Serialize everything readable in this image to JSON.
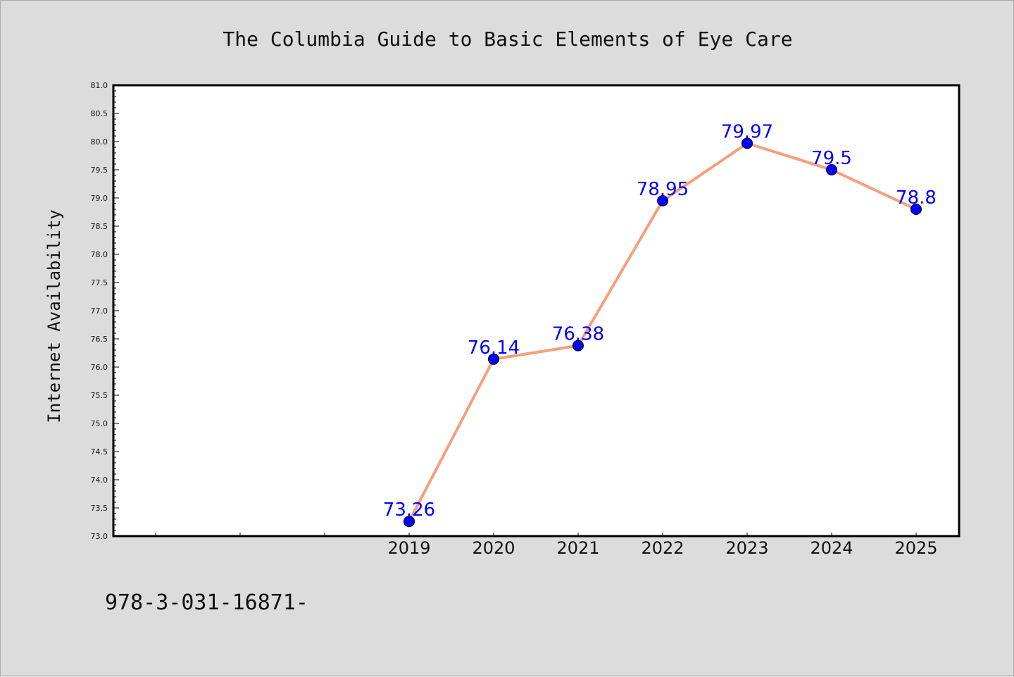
{
  "footer_note": "978-3-031-16871-",
  "colors": {
    "background": "#dcdcdc",
    "plot_background": "#ffffff",
    "line": "#f4a07d",
    "marker": "#0000ff",
    "data_label": "#0000ff"
  },
  "chart_data": {
    "type": "line",
    "title": "The Columbia Guide to Basic Elements of Eye Care",
    "xlabel": "",
    "ylabel": "Internet Availability",
    "x": [
      "2019",
      "2020",
      "2021",
      "2022",
      "2023",
      "2024",
      "2025"
    ],
    "series": [
      {
        "values": [
          73.26,
          76.14,
          76.38,
          78.95,
          79.97,
          79.5,
          78.8
        ],
        "labels": [
          "73.26",
          "76.14",
          "76.38",
          "78.95",
          "79.97",
          "79.5",
          "78.8"
        ],
        "color": "#f4a07d",
        "marker": "circle",
        "marker_color": "#0000ff"
      }
    ],
    "ylim": [
      73.0,
      81.0
    ],
    "yticks": [
      "73.0",
      "73.5",
      "74.0",
      "74.5",
      "75.0",
      "75.5",
      "76.0",
      "76.5",
      "77.0",
      "77.5",
      "78.0",
      "78.5",
      "79.0",
      "79.5",
      "80.0",
      "80.5",
      "81.0"
    ],
    "grid": false,
    "legend": "none"
  }
}
